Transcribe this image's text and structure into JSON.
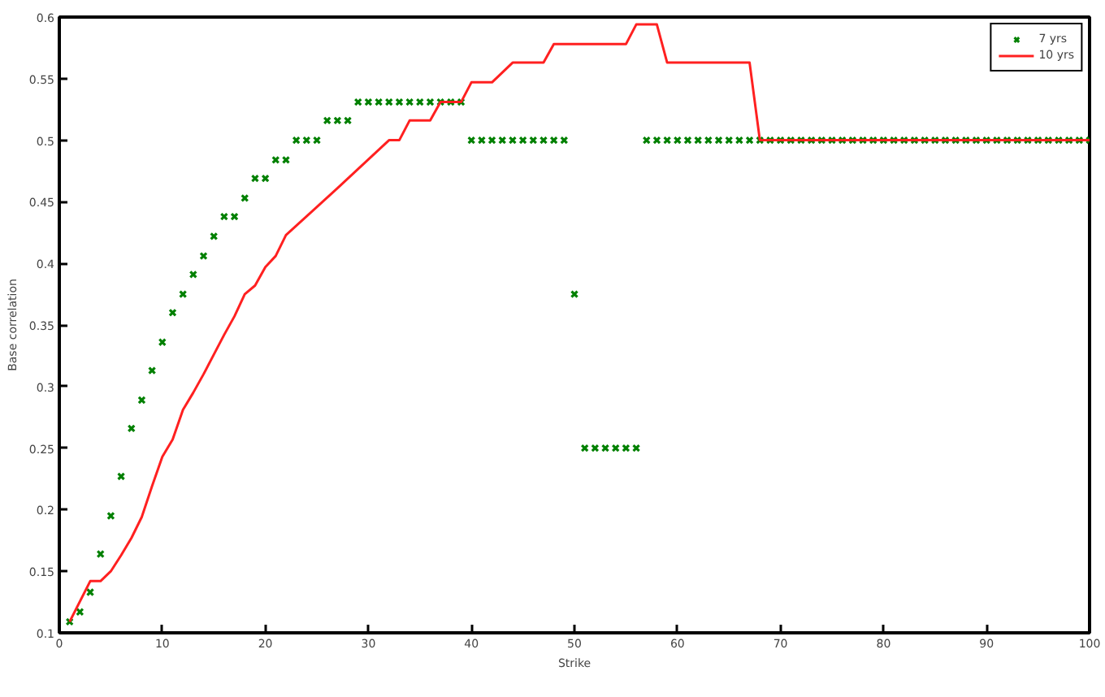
{
  "chart_data": {
    "type": "line",
    "xlabel": "Strike",
    "ylabel": "Base correlation",
    "xlim": [
      0,
      100
    ],
    "ylim": [
      0.1,
      0.6
    ],
    "xticks": [
      0,
      10,
      20,
      30,
      40,
      50,
      60,
      70,
      80,
      90,
      100
    ],
    "yticks": [
      0.1,
      0.15,
      0.2,
      0.25,
      0.3,
      0.35,
      0.4,
      0.45,
      0.5,
      0.55,
      0.6
    ],
    "grid": false,
    "legend": "top right",
    "series": [
      {
        "name": "7 yrs",
        "type": "scatter",
        "marker": "cross",
        "color": "#008000",
        "x": [
          1,
          2,
          3,
          4,
          5,
          6,
          7,
          8,
          9,
          10,
          11,
          12,
          13,
          14,
          15,
          16,
          17,
          18,
          19,
          20,
          21,
          22,
          23,
          24,
          25,
          26,
          27,
          28,
          29,
          30,
          31,
          32,
          33,
          34,
          35,
          36,
          37,
          38,
          39,
          40,
          41,
          42,
          43,
          44,
          45,
          46,
          47,
          48,
          49,
          50,
          51,
          52,
          53,
          54,
          55,
          56,
          57,
          58,
          59,
          60,
          61,
          62,
          63,
          64,
          65,
          66,
          67,
          68,
          69,
          70,
          71,
          72,
          73,
          74,
          75,
          76,
          77,
          78,
          79,
          80,
          81,
          82,
          83,
          84,
          85,
          86,
          87,
          88,
          89,
          90,
          91,
          92,
          93,
          94,
          95,
          96,
          97,
          98,
          99,
          100
        ],
        "values": [
          0.109,
          0.117,
          0.133,
          0.164,
          0.195,
          0.227,
          0.266,
          0.289,
          0.313,
          0.336,
          0.36,
          0.375,
          0.391,
          0.406,
          0.422,
          0.438,
          0.438,
          0.453,
          0.469,
          0.469,
          0.484,
          0.484,
          0.5,
          0.5,
          0.5,
          0.516,
          0.516,
          0.516,
          0.531,
          0.531,
          0.531,
          0.531,
          0.531,
          0.531,
          0.531,
          0.531,
          0.531,
          0.531,
          0.531,
          0.5,
          0.5,
          0.5,
          0.5,
          0.5,
          0.5,
          0.5,
          0.5,
          0.5,
          0.5,
          0.375,
          0.25,
          0.25,
          0.25,
          0.25,
          0.25,
          0.25,
          0.5,
          0.5,
          0.5,
          0.5,
          0.5,
          0.5,
          0.5,
          0.5,
          0.5,
          0.5,
          0.5,
          0.5,
          0.5,
          0.5,
          0.5,
          0.5,
          0.5,
          0.5,
          0.5,
          0.5,
          0.5,
          0.5,
          0.5,
          0.5,
          0.5,
          0.5,
          0.5,
          0.5,
          0.5,
          0.5,
          0.5,
          0.5,
          0.5,
          0.5,
          0.5,
          0.5,
          0.5,
          0.5,
          0.5,
          0.5,
          0.5,
          0.5,
          0.5,
          0.5
        ]
      },
      {
        "name": "10 yrs",
        "line_style": "solid",
        "color": "#ff2020",
        "x": [
          1,
          3,
          4,
          5,
          6,
          7,
          8,
          9,
          10,
          11,
          12,
          13,
          14,
          15,
          16,
          17,
          18,
          19,
          20,
          21,
          22,
          27,
          32,
          33,
          34,
          36,
          37,
          39,
          40,
          42,
          44,
          47,
          48,
          55,
          56,
          58,
          59,
          67,
          68,
          100
        ],
        "values": [
          0.109,
          0.142,
          0.142,
          0.15,
          0.163,
          0.177,
          0.194,
          0.219,
          0.243,
          0.257,
          0.281,
          0.295,
          0.31,
          0.326,
          0.342,
          0.357,
          0.375,
          0.382,
          0.397,
          0.406,
          0.423,
          0.461,
          0.5,
          0.5,
          0.516,
          0.516,
          0.531,
          0.531,
          0.547,
          0.547,
          0.563,
          0.563,
          0.578,
          0.578,
          0.594,
          0.594,
          0.563,
          0.563,
          0.5,
          0.5
        ]
      }
    ]
  }
}
